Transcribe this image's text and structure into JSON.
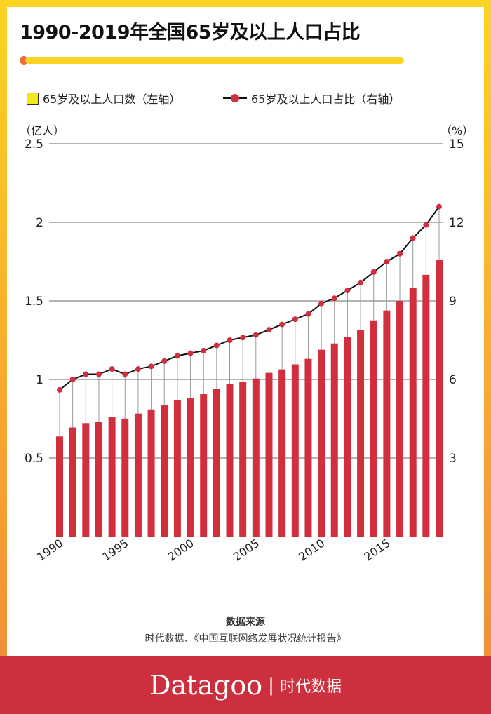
{
  "title": "1990-2019年全国65岁及以上人口占比",
  "source_heading": "数据来源",
  "source": "时代数据、《中国互联网络发展状况统计报告》",
  "brand": {
    "name": "Datagoo",
    "separator": "|",
    "cn": "时代数据"
  },
  "colors": {
    "bar": "#d22f3e",
    "dot": "#d22f3e",
    "line": "#111111",
    "grid": "#888888"
  },
  "chart_data": {
    "type": "bar+line",
    "title": "1990-2019年全国65岁及以上人口占比",
    "left_unit": "（亿人）",
    "right_unit": "（%）",
    "x": [
      1990,
      1991,
      1992,
      1993,
      1994,
      1995,
      1996,
      1997,
      1998,
      1999,
      2000,
      2001,
      2002,
      2003,
      2004,
      2005,
      2006,
      2007,
      2008,
      2009,
      2010,
      2011,
      2012,
      2013,
      2014,
      2015,
      2016,
      2017,
      2018,
      2019
    ],
    "x_tick_labels": [
      "1990",
      "1995",
      "2000",
      "2005",
      "2010",
      "2015"
    ],
    "left_ticks": [
      "0.5",
      "1",
      "1.5",
      "2",
      "2.5"
    ],
    "right_ticks": [
      "3",
      "6",
      "9",
      "12",
      "15"
    ],
    "ylim_left": [
      0,
      2.5
    ],
    "ylim_right": [
      0,
      15
    ],
    "series": [
      {
        "name": "65岁及以上人口数（左轴）",
        "type": "bar",
        "axis": "left",
        "values": [
          0.637,
          0.694,
          0.722,
          0.729,
          0.762,
          0.751,
          0.783,
          0.809,
          0.838,
          0.868,
          0.882,
          0.906,
          0.938,
          0.969,
          0.986,
          1.006,
          1.042,
          1.064,
          1.096,
          1.131,
          1.189,
          1.229,
          1.271,
          1.316,
          1.376,
          1.439,
          1.5,
          1.583,
          1.666,
          1.76
        ]
      },
      {
        "name": "65岁及以上人口占比（右轴）",
        "type": "line",
        "axis": "right",
        "values": [
          5.6,
          6.0,
          6.2,
          6.2,
          6.4,
          6.2,
          6.4,
          6.5,
          6.7,
          6.9,
          7.0,
          7.1,
          7.3,
          7.5,
          7.6,
          7.7,
          7.9,
          8.1,
          8.3,
          8.5,
          8.9,
          9.1,
          9.4,
          9.7,
          10.1,
          10.5,
          10.8,
          11.4,
          11.9,
          12.6
        ]
      }
    ],
    "legend_placement": "top-left",
    "grid": true
  }
}
